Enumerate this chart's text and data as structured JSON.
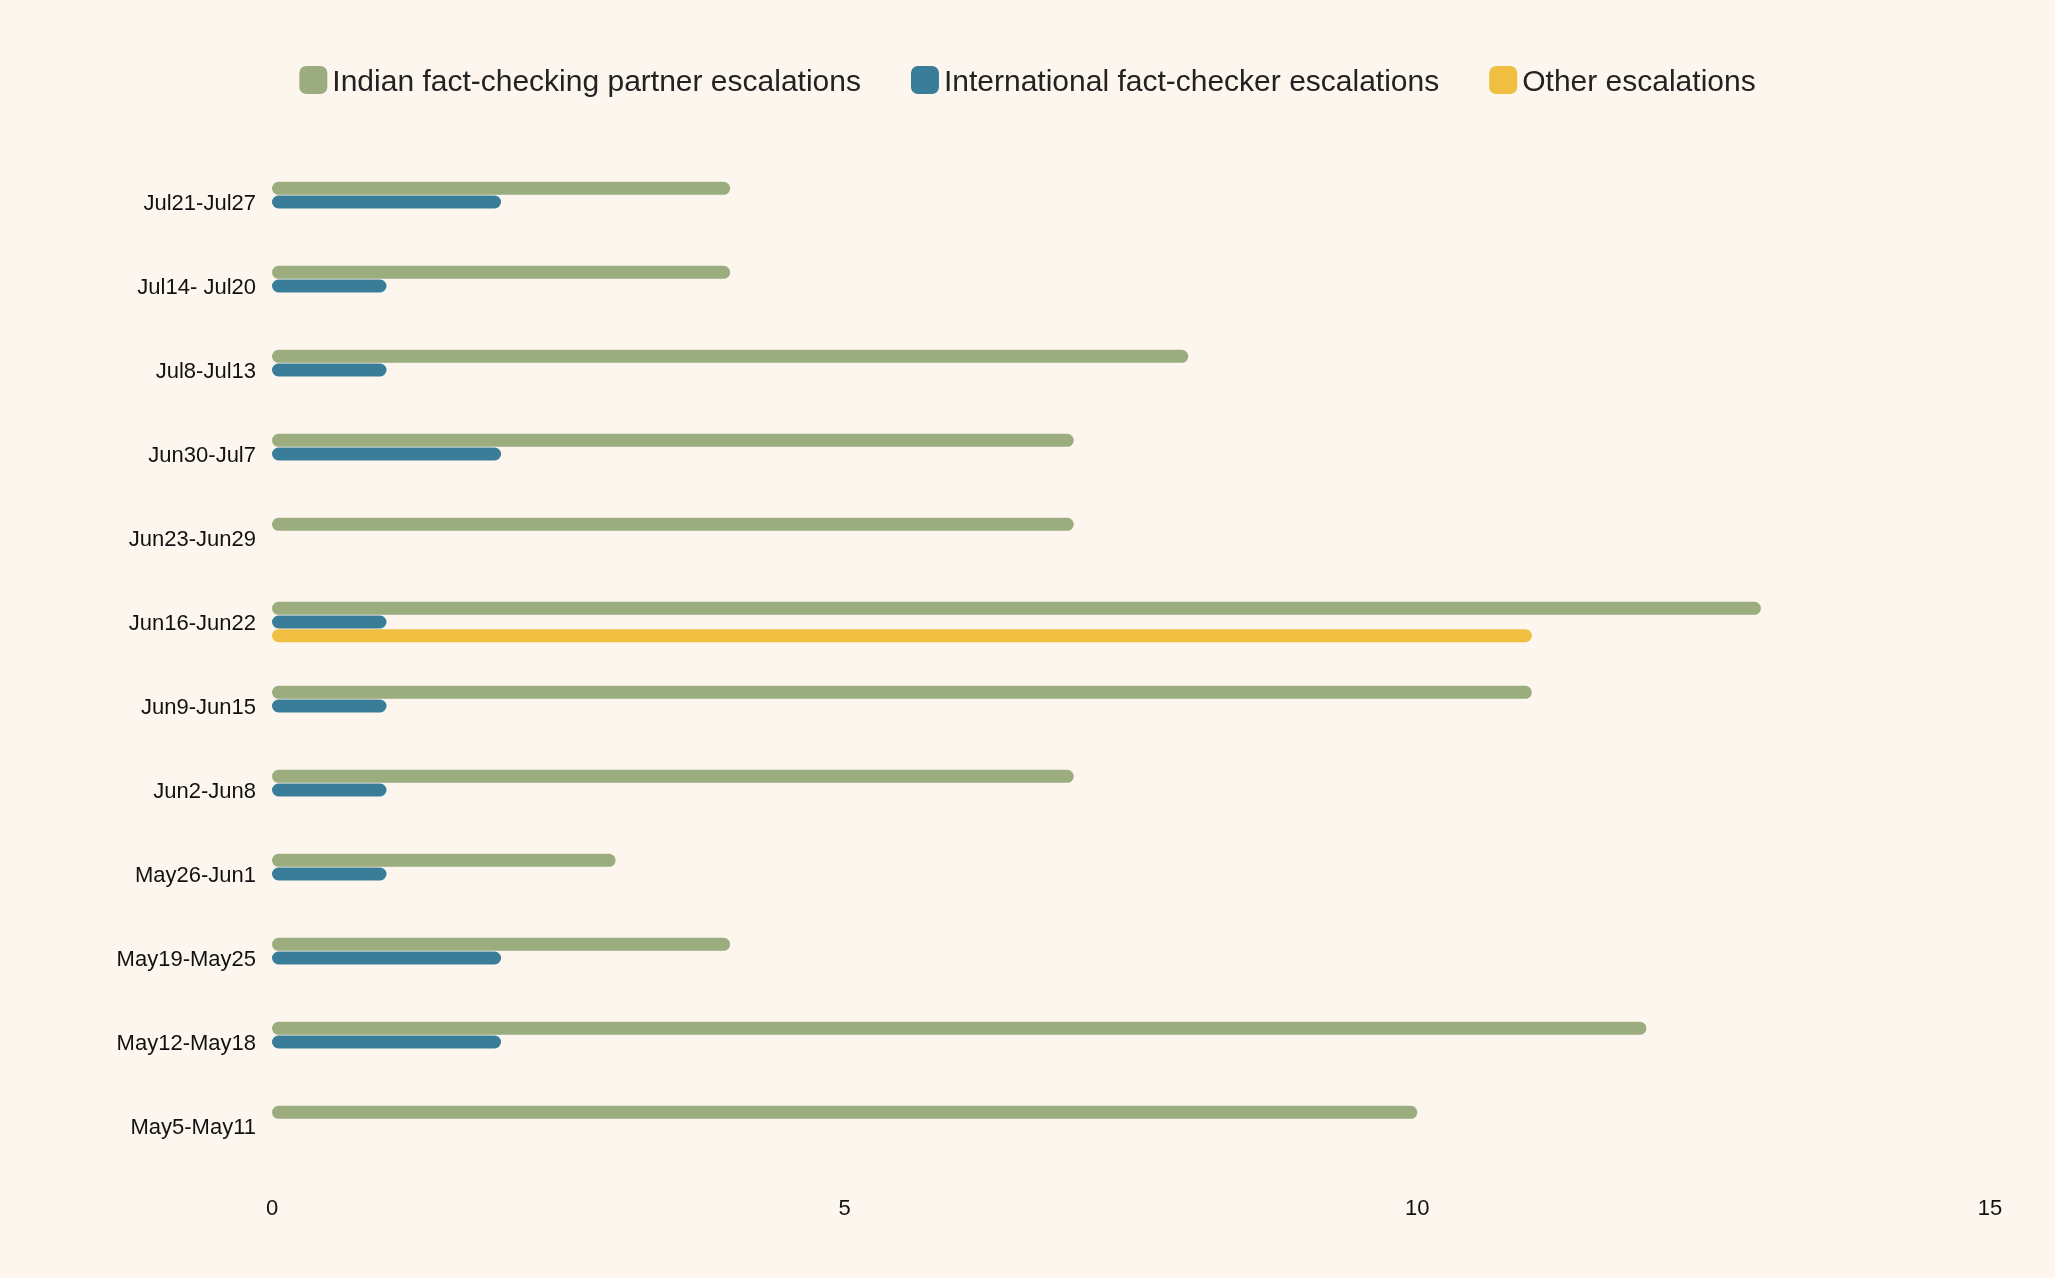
{
  "chart_data": {
    "type": "bar",
    "orientation": "horizontal",
    "categories": [
      "Jul21-Jul27",
      "Jul14- Jul20",
      "Jul8-Jul13",
      "Jun30-Jul7",
      "Jun23-Jun29",
      "Jun16-Jun22",
      "Jun9-Jun15",
      "Jun2-Jun8",
      "May26-Jun1",
      "May19-May25",
      "May12-May18",
      "May5-May11"
    ],
    "series": [
      {
        "name": "Indian fact-checking partner escalations",
        "color": "#9bac7f",
        "values": [
          4,
          4,
          8,
          7,
          7,
          13,
          11,
          7,
          3,
          4,
          12,
          10
        ]
      },
      {
        "name": "International fact-checker escalations",
        "color": "#3a7d99",
        "values": [
          2,
          1,
          1,
          2,
          null,
          1,
          1,
          1,
          1,
          2,
          2,
          null
        ]
      },
      {
        "name": "Other escalations",
        "color": "#f0be41",
        "values": [
          null,
          null,
          null,
          null,
          null,
          11,
          null,
          null,
          null,
          null,
          null,
          null
        ]
      }
    ],
    "xlim": [
      0,
      15
    ],
    "xticks": [
      0,
      5,
      10,
      15
    ],
    "grid": false,
    "legend": "top"
  }
}
